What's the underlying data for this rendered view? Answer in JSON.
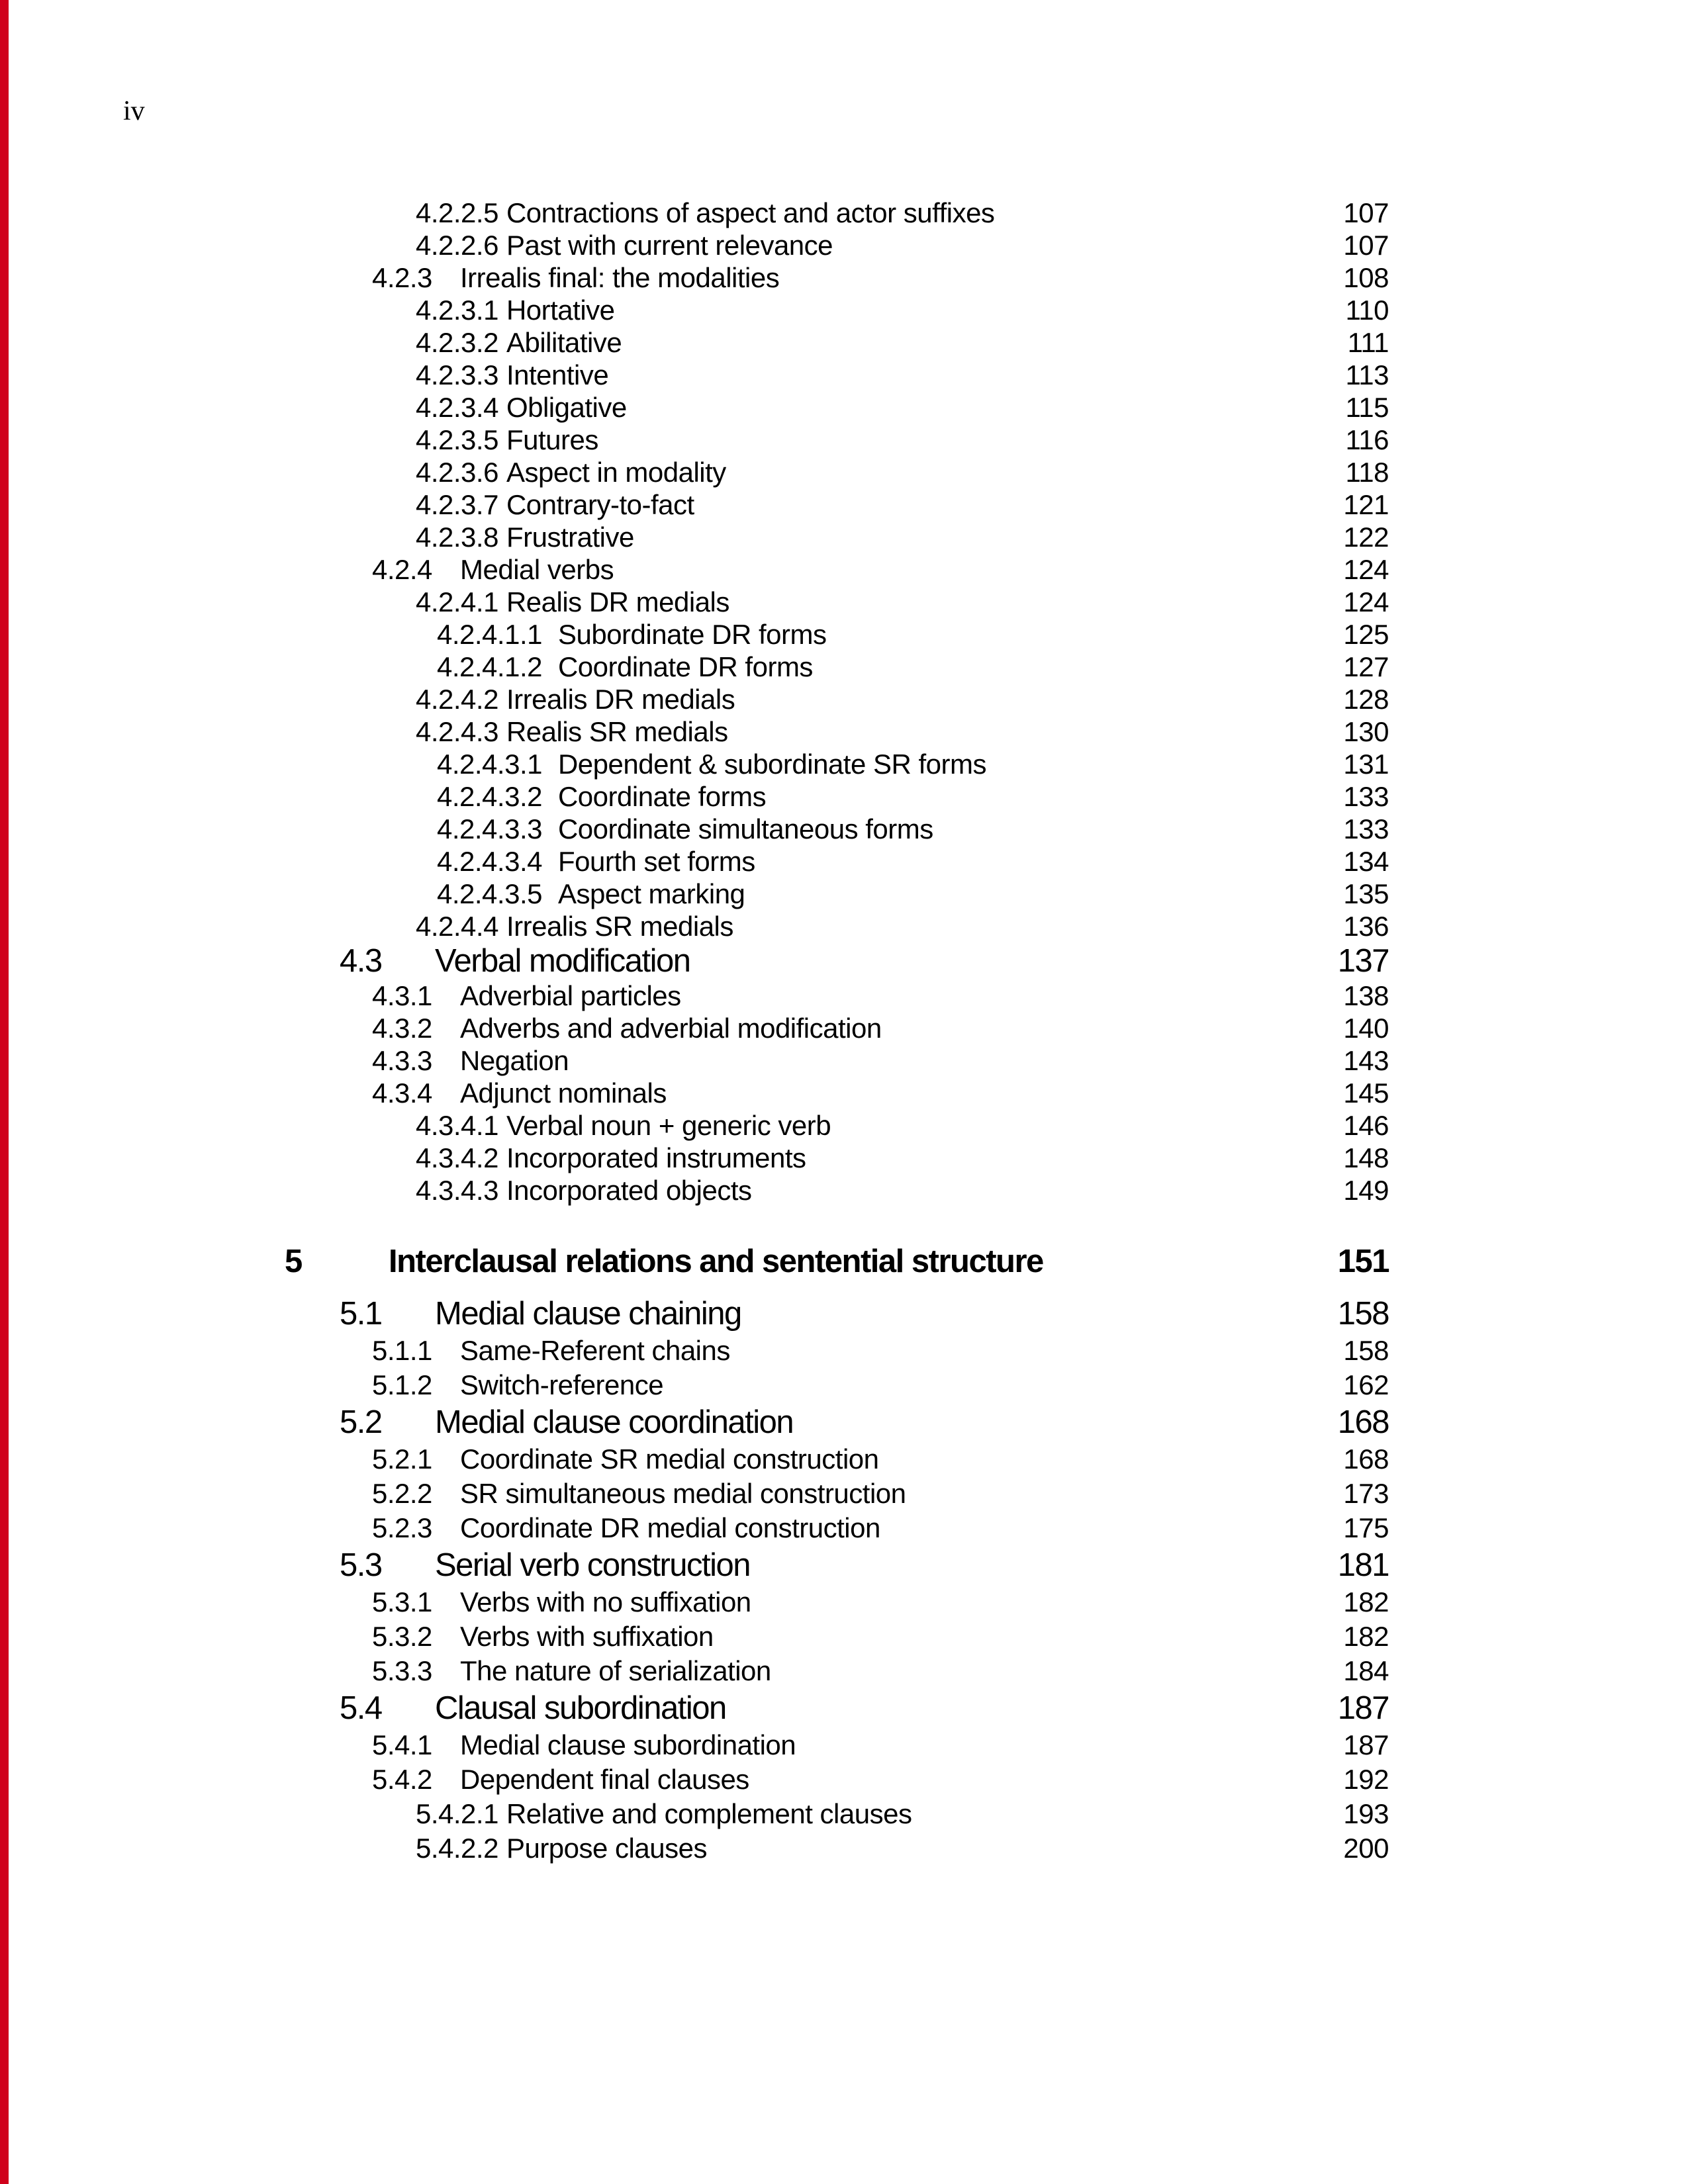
{
  "page": {
    "folio": "iv"
  },
  "colors": {
    "scan_edge_bar": "#d0021b",
    "paper": "#ffffff",
    "ink": "#000000"
  },
  "toc": {
    "entries": [
      {
        "num": "4.2.2.5",
        "title": "Contractions of aspect and actor suffixes",
        "page": "107",
        "level": 4
      },
      {
        "num": "4.2.2.6",
        "title": "Past with current relevance",
        "page": "107",
        "level": 4
      },
      {
        "num": "4.2.3",
        "title": "Irrealis final: the modalities",
        "page": "108",
        "level": 3
      },
      {
        "num": "4.2.3.1",
        "title": "Hortative",
        "page": "110",
        "level": 4
      },
      {
        "num": "4.2.3.2",
        "title": "Abilitative",
        "page": "111",
        "level": 4
      },
      {
        "num": "4.2.3.3",
        "title": "Intentive",
        "page": "113",
        "level": 4
      },
      {
        "num": "4.2.3.4",
        "title": "Obligative",
        "page": "115",
        "level": 4
      },
      {
        "num": "4.2.3.5",
        "title": "Futures",
        "page": "116",
        "level": 4
      },
      {
        "num": "4.2.3.6",
        "title": "Aspect in modality",
        "page": "118",
        "level": 4
      },
      {
        "num": "4.2.3.7",
        "title": "Contrary-to-fact",
        "page": "121",
        "level": 4
      },
      {
        "num": "4.2.3.8",
        "title": "Frustrative",
        "page": "122",
        "level": 4
      },
      {
        "num": "4.2.4",
        "title": "Medial verbs",
        "page": "124",
        "level": 3
      },
      {
        "num": "4.2.4.1",
        "title": "Realis DR medials",
        "page": "124",
        "level": 4
      },
      {
        "num": "4.2.4.1.1",
        "title": "Subordinate DR forms",
        "page": "125",
        "level": 5
      },
      {
        "num": "4.2.4.1.2",
        "title": "Coordinate DR forms",
        "page": "127",
        "level": 5
      },
      {
        "num": "4.2.4.2",
        "title": "Irrealis DR medials",
        "page": "128",
        "level": 4
      },
      {
        "num": "4.2.4.3",
        "title": "Realis SR medials",
        "page": "130",
        "level": 4
      },
      {
        "num": "4.2.4.3.1",
        "title": "Dependent & subordinate SR forms",
        "page": "131",
        "level": 5
      },
      {
        "num": "4.2.4.3.2",
        "title": "Coordinate forms",
        "page": "133",
        "level": 5
      },
      {
        "num": "4.2.4.3.3",
        "title": "Coordinate simultaneous forms",
        "page": "133",
        "level": 5
      },
      {
        "num": "4.2.4.3.4",
        "title": "Fourth set forms",
        "page": "134",
        "level": 5
      },
      {
        "num": "4.2.4.3.5",
        "title": "Aspect marking",
        "page": "135",
        "level": 5
      },
      {
        "num": "4.2.4.4",
        "title": "Irrealis SR medials",
        "page": "136",
        "level": 4
      },
      {
        "num": "4.3",
        "title": "Verbal modification",
        "page": "137",
        "level": 2
      },
      {
        "num": "4.3.1",
        "title": "Adverbial particles",
        "page": "138",
        "level": 3
      },
      {
        "num": "4.3.2",
        "title": "Adverbs and adverbial modification",
        "page": "140",
        "level": 3
      },
      {
        "num": "4.3.3",
        "title": "Negation",
        "page": "143",
        "level": 3
      },
      {
        "num": "4.3.4",
        "title": "Adjunct nominals",
        "page": "145",
        "level": 3
      },
      {
        "num": "4.3.4.1",
        "title": "Verbal noun + generic verb",
        "page": "146",
        "level": 4
      },
      {
        "num": "4.3.4.2",
        "title": "Incorporated instruments",
        "page": "148",
        "level": 4
      },
      {
        "num": "4.3.4.3",
        "title": "Incorporated objects",
        "page": "149",
        "level": 4
      },
      {
        "num": "5",
        "title": "Interclausal relations and sentential structure",
        "page": "151",
        "level": 1
      },
      {
        "num": "5.1",
        "title": "Medial clause chaining",
        "page": "158",
        "level": 2
      },
      {
        "num": "5.1.1",
        "title": "Same-Referent chains",
        "page": "158",
        "level": 3
      },
      {
        "num": "5.1.2",
        "title": "Switch-reference",
        "page": "162",
        "level": 3
      },
      {
        "num": "5.2",
        "title": "Medial clause coordination",
        "page": "168",
        "level": 2
      },
      {
        "num": "5.2.1",
        "title": "Coordinate SR medial construction",
        "page": "168",
        "level": 3
      },
      {
        "num": "5.2.2",
        "title": "SR simultaneous medial construction",
        "page": "173",
        "level": 3
      },
      {
        "num": "5.2.3",
        "title": "Coordinate DR medial construction",
        "page": "175",
        "level": 3
      },
      {
        "num": "5.3",
        "title": "Serial verb construction",
        "page": "181",
        "level": 2
      },
      {
        "num": "5.3.1",
        "title": "Verbs with no suffixation",
        "page": "182",
        "level": 3
      },
      {
        "num": "5.3.2",
        "title": "Verbs with suffixation",
        "page": "182",
        "level": 3
      },
      {
        "num": "5.3.3",
        "title": "The nature of serialization",
        "page": "184",
        "level": 3
      },
      {
        "num": "5.4",
        "title": "Clausal subordination",
        "page": "187",
        "level": 2
      },
      {
        "num": "5.4.1",
        "title": "Medial clause subordination",
        "page": "187",
        "level": 3
      },
      {
        "num": "5.4.2",
        "title": "Dependent final clauses",
        "page": "192",
        "level": 3
      },
      {
        "num": "5.4.2.1",
        "title": "Relative and complement clauses",
        "page": "193",
        "level": 4
      },
      {
        "num": "5.4.2.2",
        "title": "Purpose clauses",
        "page": "200",
        "level": 4
      }
    ]
  }
}
